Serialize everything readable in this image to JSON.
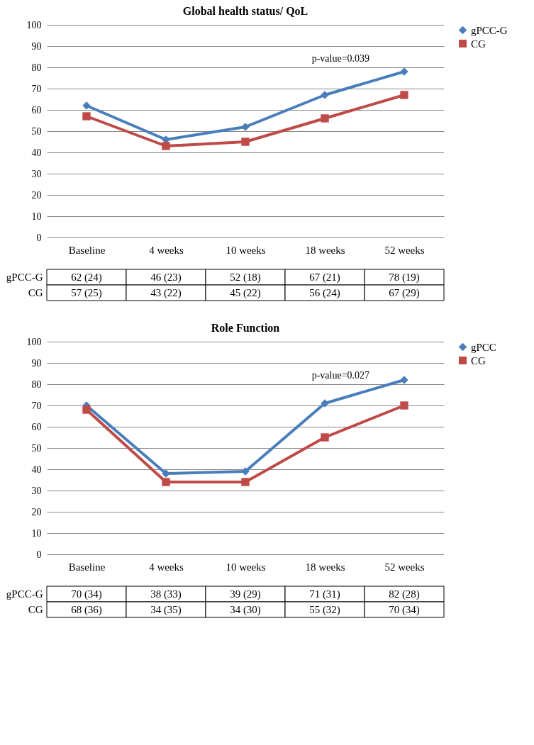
{
  "chart_data": [
    {
      "type": "line",
      "title": "Global health status/ QoL",
      "categories": [
        "Baseline",
        "4 weeks",
        "10 weeks",
        "18 weeks",
        "52 weeks"
      ],
      "ylim": [
        0,
        100
      ],
      "yticks": [
        0,
        10,
        20,
        30,
        40,
        50,
        60,
        70,
        80,
        90,
        100
      ],
      "grid": "y",
      "legend": "right",
      "annotations": [
        "p-value=0.039",
        "gPCC-G",
        "CG"
      ],
      "series": [
        {
          "name": "gPCC-G",
          "color": "#4a7ebb",
          "marker": "diamond",
          "values": [
            62,
            46,
            52,
            67,
            78
          ],
          "value_labels": [
            "62 (24)",
            "46 (23)",
            "52 (18)",
            "67 (21)",
            "78 (19)"
          ]
        },
        {
          "name": "CG",
          "color": "#be4b48",
          "marker": "square",
          "values": [
            57,
            43,
            45,
            56,
            67
          ],
          "value_labels": [
            "57 (25)",
            "43 (22)",
            "45 (22)",
            "56 (24)",
            "67 (29)"
          ]
        }
      ]
    },
    {
      "type": "line",
      "title": "Role Function",
      "categories": [
        "Baseline",
        "4 weeks",
        "10 weeks",
        "18 weeks",
        "52 weeks"
      ],
      "ylim": [
        0,
        100
      ],
      "yticks": [
        0,
        10,
        20,
        30,
        40,
        50,
        60,
        70,
        80,
        90,
        100
      ],
      "grid": "y",
      "legend": "right",
      "annotations": [
        "p-value=0.027",
        "gPCC-G",
        "CG"
      ],
      "series": [
        {
          "name": "gPCC",
          "color": "#4a7ebb",
          "marker": "diamond",
          "values": [
            70,
            38,
            39,
            71,
            82
          ],
          "value_labels": [
            "70 (34)",
            "38 (33)",
            "39 (29)",
            "71 (31)",
            "82 (28)"
          ]
        },
        {
          "name": "CG",
          "color": "#be4b48",
          "marker": "square",
          "values": [
            68,
            34,
            34,
            55,
            70
          ],
          "value_labels": [
            "68 (36)",
            "34 (35)",
            "34 (30)",
            "55 (32)",
            "70 (34)"
          ]
        }
      ]
    }
  ]
}
